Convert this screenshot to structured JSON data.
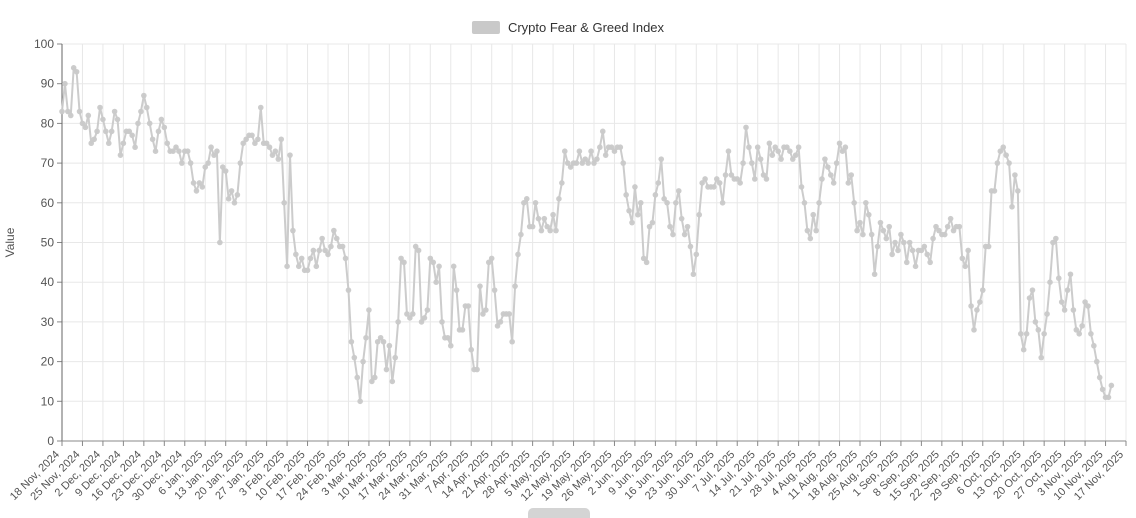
{
  "chart_data": {
    "type": "line",
    "title": "Crypto Fear & Greed Index",
    "ylabel": "Value",
    "ylim": [
      0,
      100
    ],
    "yticks": [
      0,
      10,
      20,
      30,
      40,
      50,
      60,
      70,
      80,
      90,
      100
    ],
    "grid": true,
    "legend_position": "top-center",
    "marker": "circle",
    "frequency": "daily",
    "x_tick_labels": [
      "18 Nov, 2024",
      "25 Nov, 2024",
      "2 Dec, 2024",
      "9 Dec, 2024",
      "16 Dec, 2024",
      "23 Dec, 2024",
      "30 Dec, 2024",
      "6 Jan, 2025",
      "13 Jan, 2025",
      "20 Jan, 2025",
      "27 Jan, 2025",
      "3 Feb, 2025",
      "10 Feb, 2025",
      "17 Feb, 2025",
      "24 Feb, 2025",
      "3 Mar, 2025",
      "10 Mar, 2025",
      "17 Mar, 2025",
      "24 Mar, 2025",
      "31 Mar, 2025",
      "7 Apr, 2025",
      "14 Apr, 2025",
      "21 Apr, 2025",
      "28 Apr, 2025",
      "5 May, 2025",
      "12 May, 2025",
      "19 May, 2025",
      "26 May, 2025",
      "2 Jun, 2025",
      "9 Jun, 2025",
      "16 Jun, 2025",
      "23 Jun, 2025",
      "30 Jun, 2025",
      "7 Jul, 2025",
      "14 Jul, 2025",
      "21 Jul, 2025",
      "28 Jul, 2025",
      "4 Aug, 2025",
      "11 Aug, 2025",
      "18 Aug, 2025",
      "25 Aug, 2025",
      "1 Sep, 2025",
      "8 Sep, 2025",
      "15 Sep, 2025",
      "22 Sep, 2025",
      "29 Sep, 2025",
      "6 Oct, 2025",
      "13 Oct, 2025",
      "20 Oct, 2025",
      "27 Oct, 2025",
      "3 Nov, 2025",
      "10 Nov, 2025",
      "17 Nov, 2025"
    ],
    "series": [
      {
        "name": "Crypto Fear & Greed Index",
        "color": "#c9c9c9",
        "start_label": "18 Nov, 2024",
        "values": [
          83,
          90,
          83,
          82,
          94,
          93,
          83,
          80,
          79,
          82,
          75,
          76,
          78,
          84,
          81,
          78,
          75,
          78,
          83,
          81,
          72,
          75,
          78,
          78,
          77,
          74,
          80,
          83,
          87,
          84,
          80,
          76,
          73,
          78,
          81,
          79,
          75,
          73,
          73,
          74,
          73,
          70,
          73,
          73,
          70,
          65,
          63,
          65,
          64,
          69,
          70,
          74,
          72,
          73,
          50,
          69,
          68,
          61,
          63,
          60,
          62,
          70,
          75,
          76,
          77,
          77,
          75,
          76,
          84,
          75,
          75,
          74,
          72,
          73,
          71,
          76,
          60,
          44,
          72,
          53,
          47,
          44,
          46,
          43,
          43,
          46,
          48,
          44,
          48,
          51,
          48,
          47,
          49,
          53,
          51,
          49,
          49,
          46,
          38,
          25,
          21,
          16,
          10,
          20,
          26,
          33,
          15,
          16,
          25,
          26,
          25,
          18,
          24,
          15,
          21,
          30,
          46,
          45,
          32,
          31,
          32,
          49,
          48,
          30,
          31,
          33,
          46,
          45,
          40,
          44,
          30,
          26,
          26,
          24,
          44,
          38,
          28,
          28,
          34,
          34,
          23,
          18,
          18,
          39,
          32,
          33,
          45,
          46,
          38,
          29,
          30,
          32,
          32,
          32,
          25,
          39,
          47,
          52,
          60,
          61,
          54,
          54,
          60,
          56,
          53,
          56,
          54,
          53,
          57,
          53,
          61,
          65,
          73,
          70,
          69,
          70,
          70,
          73,
          70,
          71,
          70,
          73,
          70,
          71,
          74,
          78,
          72,
          74,
          74,
          73,
          74,
          74,
          70,
          62,
          58,
          55,
          64,
          57,
          60,
          46,
          45,
          54,
          55,
          62,
          65,
          71,
          61,
          60,
          54,
          52,
          60,
          63,
          56,
          52,
          54,
          49,
          42,
          47,
          57,
          65,
          66,
          64,
          64,
          64,
          66,
          65,
          60,
          67,
          73,
          67,
          66,
          66,
          65,
          70,
          79,
          74,
          70,
          66,
          74,
          71,
          67,
          66,
          75,
          72,
          74,
          73,
          71,
          74,
          74,
          73,
          71,
          72,
          74,
          64,
          60,
          53,
          51,
          57,
          53,
          60,
          66,
          71,
          69,
          67,
          65,
          70,
          75,
          73,
          74,
          65,
          67,
          60,
          53,
          55,
          52,
          60,
          57,
          52,
          42,
          49,
          55,
          53,
          51,
          54,
          47,
          50,
          48,
          52,
          50,
          45,
          50,
          48,
          44,
          48,
          48,
          49,
          47,
          45,
          51,
          54,
          53,
          52,
          52,
          54,
          56,
          53,
          54,
          54,
          46,
          44,
          48,
          34,
          28,
          33,
          35,
          38,
          49,
          49,
          63,
          63,
          70,
          73,
          74,
          72,
          70,
          59,
          67,
          63,
          27,
          23,
          27,
          36,
          38,
          30,
          28,
          21,
          27,
          32,
          40,
          50,
          51,
          41,
          35,
          33,
          38,
          42,
          33,
          28,
          27,
          29,
          35,
          34,
          27,
          24,
          20,
          16,
          13,
          11,
          11,
          14
        ]
      }
    ],
    "colors": {
      "grid": "#e8e8e8",
      "axis_line": "#888888",
      "y_spine": "#666666",
      "tick_label": "#555555",
      "legend_text": "#333333",
      "background": "#ffffff"
    }
  }
}
